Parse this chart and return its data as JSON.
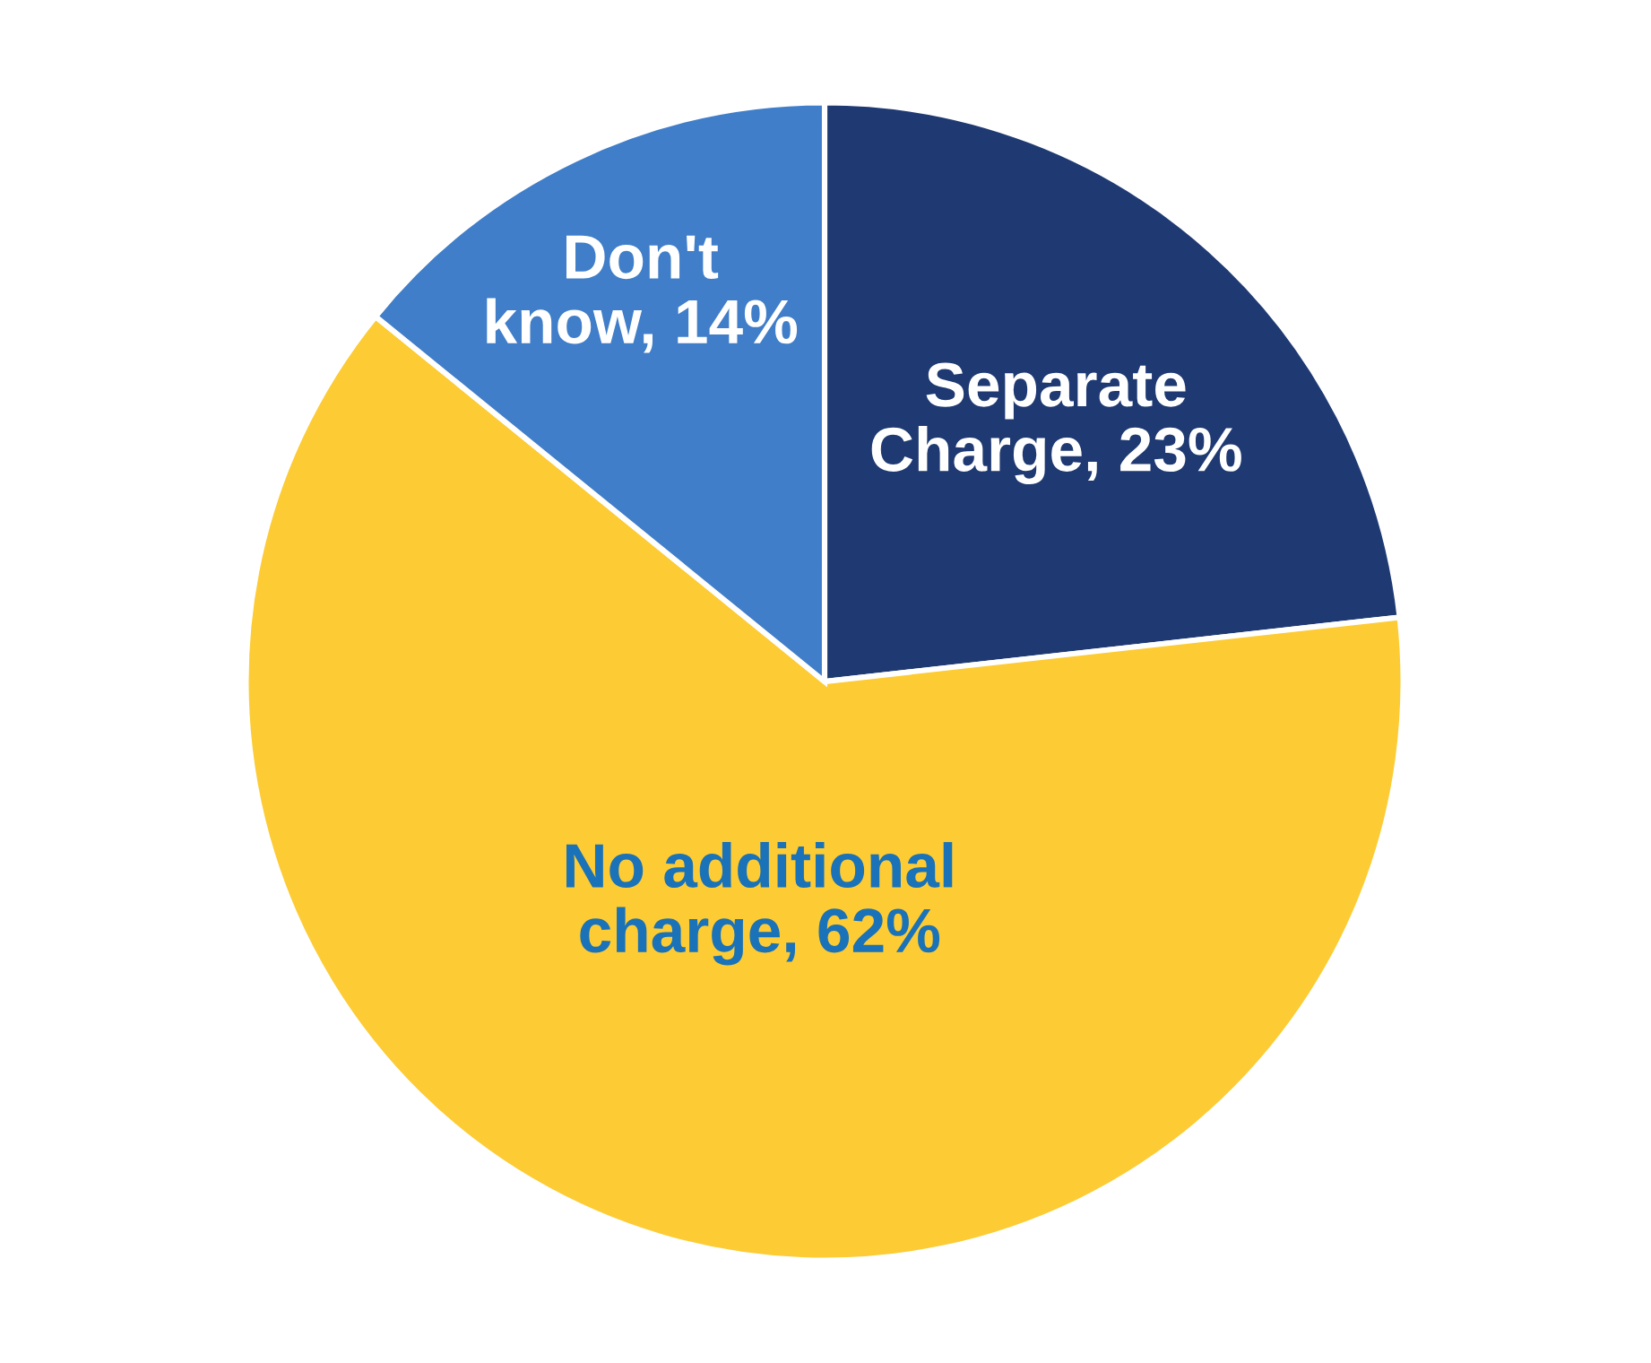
{
  "chart_data": {
    "type": "pie",
    "categories": [
      "Separate\nCharge",
      "No additional\ncharge",
      "Don't\nknow"
    ],
    "values": [
      23,
      62,
      14
    ],
    "value_labels": [
      "23%",
      "62%",
      "14%"
    ],
    "colors": [
      "#1f3a73",
      "#fdcb33",
      "#407ec9"
    ],
    "legend": false
  }
}
